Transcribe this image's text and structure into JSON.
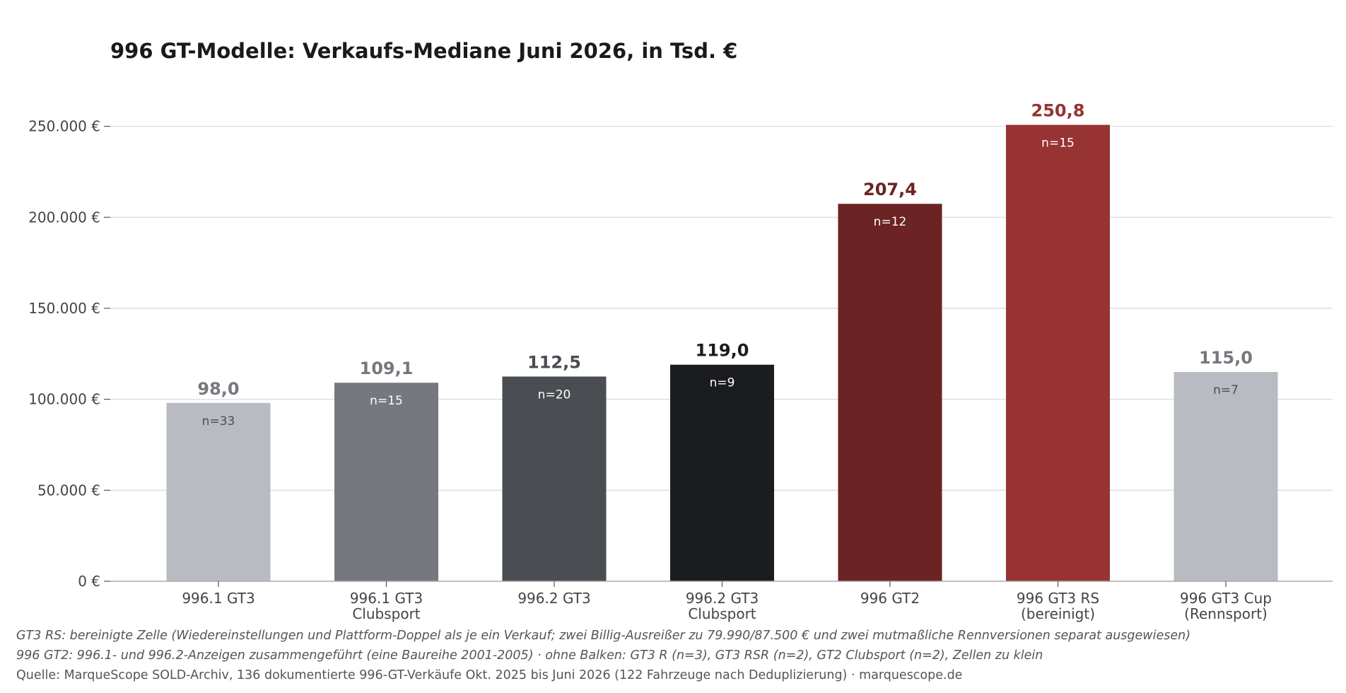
{
  "chart_data": {
    "type": "bar",
    "title": "996 GT-Modelle: Verkaufs-Mediane Juni 2026, in Tsd. €",
    "xlabel": "",
    "ylabel": "",
    "ylim": [
      0,
      265000
    ],
    "yticks": [
      0,
      50000,
      100000,
      150000,
      200000,
      250000
    ],
    "ytick_labels": [
      "0 €",
      "50.000 €",
      "100.000 €",
      "150.000 €",
      "200.000 €",
      "250.000 €"
    ],
    "grid": true,
    "legend": "none",
    "categories": [
      [
        "996.1 GT3"
      ],
      [
        "996.1 GT3",
        "Clubsport"
      ],
      [
        "996.2 GT3"
      ],
      [
        "996.2 GT3",
        "Clubsport"
      ],
      [
        "996 GT2"
      ],
      [
        "996 GT3 RS",
        "(bereinigt)"
      ],
      [
        "996 GT3 Cup",
        "(Rennsport)"
      ]
    ],
    "values": [
      98000,
      109100,
      112500,
      119000,
      207400,
      250800,
      115000
    ],
    "value_labels": [
      "98,0",
      "109,1",
      "112,5",
      "119,0",
      "207,4",
      "250,8",
      "115,0"
    ],
    "counts": [
      "n=33",
      "n=15",
      "n=20",
      "n=9",
      "n=12",
      "n=15",
      "n=7"
    ],
    "bar_colors": [
      "#b9bbc2",
      "#767880",
      "#4a4d52",
      "#1b1c1f",
      "#6b2323",
      "#973433",
      "#b9bbc2"
    ],
    "value_label_colors": [
      "#76787e",
      "#76787e",
      "#4a4d52",
      "#1b1c1f",
      "#6b2323",
      "#973433",
      "#76787e"
    ],
    "count_label_colors": [
      "#4a4d52",
      "#ffffff",
      "#ffffff",
      "#ffffff",
      "#ffffff",
      "#ffffff",
      "#4a4d52"
    ]
  },
  "footnotes": {
    "note_1": "GT3 RS: bereinigte Zelle (Wiedereinstellungen und Plattform-Doppel als je ein Verkauf; zwei Billig-Ausreißer zu 79.990/87.500 € und zwei mutmaßliche Rennversionen separat ausgewiesen)",
    "note_2": "996 GT2: 996.1- und 996.2-Anzeigen zusammengeführt (eine Baureihe 2001-2005) · ohne Balken: GT3 R (n=3), GT3 RSR (n=2), GT2 Clubsport (n=2), Zellen zu klein",
    "source": "Quelle: MarqueScope SOLD-Archiv, 136 dokumentierte 996-GT-Verkäufe Okt. 2025 bis Juni 2026 (122 Fahrzeuge nach Deduplizierung) · marquescope.de"
  }
}
